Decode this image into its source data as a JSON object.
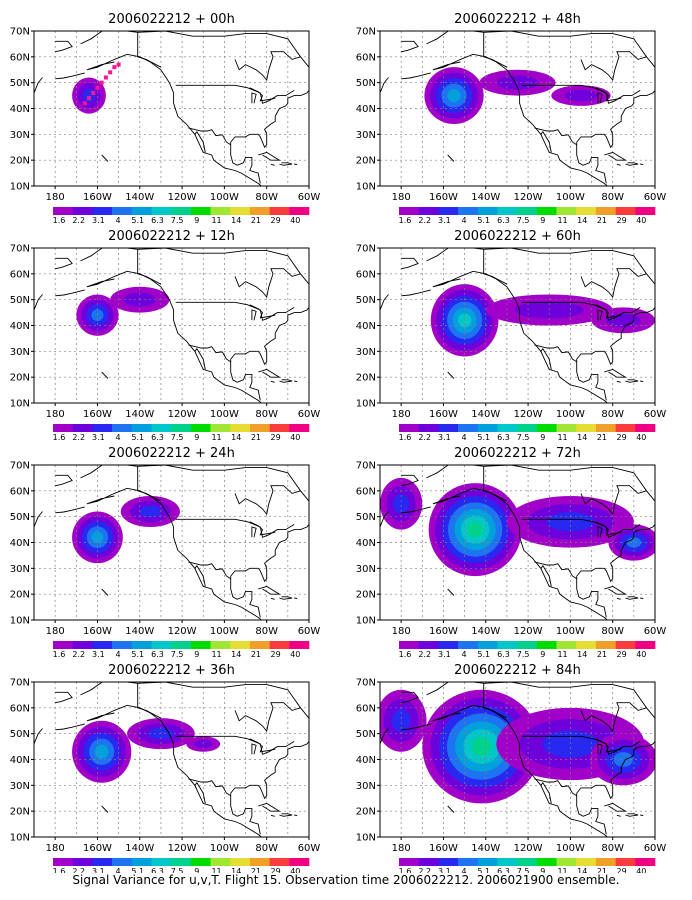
{
  "caption": "Signal Variance for u,v,T. Flight 15. Observation time 2006022212. 2006021900 ensemble.",
  "lat_labels": [
    "10N",
    "20N",
    "30N",
    "40N",
    "50N",
    "60N",
    "70N"
  ],
  "lon_labels": [
    "180",
    "160W",
    "140W",
    "120W",
    "100W",
    "80W",
    "60W"
  ],
  "colorbar": {
    "levels": [
      "1.6",
      "2.2",
      "3.1",
      "4",
      "5.1",
      "6.3",
      "7.5",
      "9",
      "11",
      "14",
      "21",
      "29",
      "40"
    ],
    "colors": [
      "#a000c8",
      "#6e00dc",
      "#2828f0",
      "#1e74f0",
      "#00a0dc",
      "#00c8c8",
      "#00d28c",
      "#00dc00",
      "#a0e632",
      "#e6dc32",
      "#f0a028",
      "#fa3c3c",
      "#f00082"
    ]
  },
  "chart_data": {
    "type": "heatmap",
    "description_fields": "8 map panels of signal variance (u,v,T); blobs listed as centre lon/lat with intensity class index",
    "lon_range": [
      -190,
      -60
    ],
    "lat_range": [
      10,
      70
    ],
    "panels": [
      {
        "title": "2006022212 + 00h",
        "row": 0,
        "col": 0,
        "blobs": [
          {
            "lon": -164,
            "lat": 45,
            "rlon": 8,
            "rlat": 7,
            "max": 2
          }
        ],
        "markers": [
          [
            -166,
            42
          ],
          [
            -164,
            44
          ],
          [
            -162,
            46
          ],
          [
            -160,
            48
          ],
          [
            -158,
            50
          ],
          [
            -156,
            52
          ],
          [
            -154,
            54
          ],
          [
            -152,
            56
          ],
          [
            -150,
            57
          ]
        ]
      },
      {
        "title": "2006022212 + 48h",
        "row": 0,
        "col": 1,
        "blobs": [
          {
            "lon": -155,
            "lat": 45,
            "rlon": 14,
            "rlat": 11,
            "max": 4
          },
          {
            "lon": -125,
            "lat": 50,
            "rlon": 18,
            "rlat": 5,
            "max": 1
          },
          {
            "lon": -95,
            "lat": 45,
            "rlon": 14,
            "rlat": 4,
            "max": 1
          }
        ],
        "markers": []
      },
      {
        "title": "2006022212 + 12h",
        "row": 1,
        "col": 0,
        "blobs": [
          {
            "lon": -160,
            "lat": 44,
            "rlon": 10,
            "rlat": 8,
            "max": 3
          },
          {
            "lon": -140,
            "lat": 50,
            "rlon": 14,
            "rlat": 5,
            "max": 1
          }
        ],
        "markers": []
      },
      {
        "title": "2006022212 + 60h",
        "row": 1,
        "col": 1,
        "blobs": [
          {
            "lon": -150,
            "lat": 42,
            "rlon": 16,
            "rlat": 14,
            "max": 5
          },
          {
            "lon": -110,
            "lat": 46,
            "rlon": 30,
            "rlat": 6,
            "max": 1
          },
          {
            "lon": -75,
            "lat": 42,
            "rlon": 15,
            "rlat": 5,
            "max": 1
          }
        ],
        "markers": []
      },
      {
        "title": "2006022212 + 24h",
        "row": 2,
        "col": 0,
        "blobs": [
          {
            "lon": -160,
            "lat": 42,
            "rlon": 12,
            "rlat": 10,
            "max": 4
          },
          {
            "lon": -135,
            "lat": 52,
            "rlon": 14,
            "rlat": 6,
            "max": 2
          }
        ],
        "markers": []
      },
      {
        "title": "2006022212 + 72h",
        "row": 2,
        "col": 1,
        "blobs": [
          {
            "lon": -145,
            "lat": 45,
            "rlon": 22,
            "rlat": 18,
            "max": 6
          },
          {
            "lon": -100,
            "lat": 48,
            "rlon": 30,
            "rlat": 10,
            "max": 2
          },
          {
            "lon": -70,
            "lat": 40,
            "rlon": 12,
            "rlat": 7,
            "max": 3
          },
          {
            "lon": -180,
            "lat": 55,
            "rlon": 10,
            "rlat": 10,
            "max": 2
          }
        ],
        "markers": []
      },
      {
        "title": "2006022212 + 36h",
        "row": 3,
        "col": 0,
        "blobs": [
          {
            "lon": -158,
            "lat": 43,
            "rlon": 14,
            "rlat": 12,
            "max": 4
          },
          {
            "lon": -130,
            "lat": 50,
            "rlon": 16,
            "rlat": 6,
            "max": 2
          },
          {
            "lon": -110,
            "lat": 46,
            "rlon": 8,
            "rlat": 3,
            "max": 1
          }
        ],
        "markers": []
      },
      {
        "title": "2006022212 + 84h",
        "row": 3,
        "col": 1,
        "blobs": [
          {
            "lon": -142,
            "lat": 45,
            "rlon": 28,
            "rlat": 22,
            "max": 6
          },
          {
            "lon": -100,
            "lat": 46,
            "rlon": 35,
            "rlat": 14,
            "max": 2
          },
          {
            "lon": -75,
            "lat": 40,
            "rlon": 16,
            "rlat": 10,
            "max": 3
          },
          {
            "lon": -180,
            "lat": 55,
            "rlon": 12,
            "rlat": 12,
            "max": 2
          }
        ],
        "markers": []
      }
    ]
  }
}
